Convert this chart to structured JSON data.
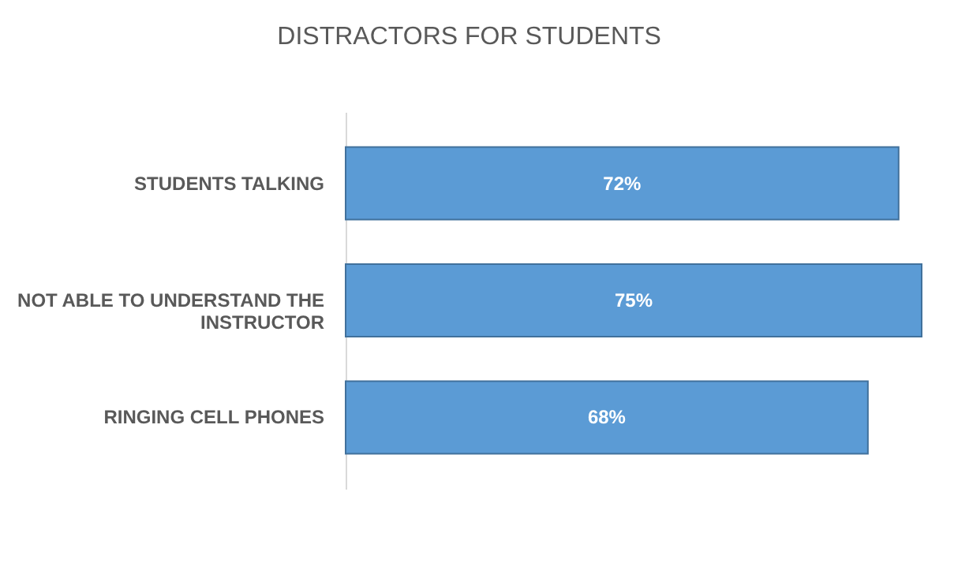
{
  "chart_data": {
    "type": "bar",
    "orientation": "horizontal",
    "title": "DISTRACTORS FOR STUDENTS",
    "categories": [
      "STUDENTS TALKING",
      "NOT ABLE TO UNDERSTAND THE\nINSTRUCTOR",
      "RINGING CELL PHONES"
    ],
    "values": [
      72,
      75,
      68
    ],
    "value_labels": [
      "72%",
      "75%",
      "68%"
    ],
    "color": "#5b9bd5",
    "tick_labels": "y",
    "grid": false,
    "legend": false
  }
}
